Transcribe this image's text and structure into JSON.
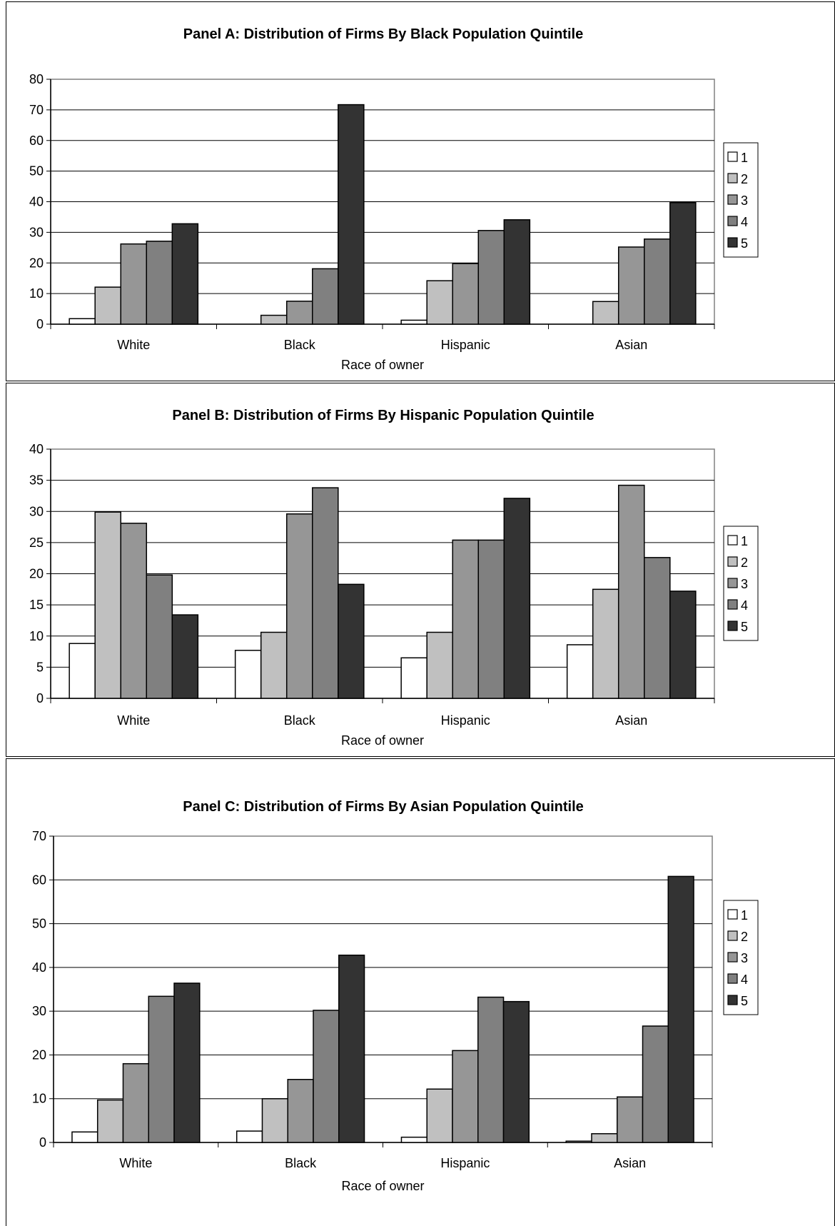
{
  "chart_data": [
    {
      "type": "bar",
      "title": "Panel A:  Distribution of Firms By Black Population Quintile",
      "xlabel": "Race of owner",
      "ylabel": "",
      "ylim": [
        0,
        80
      ],
      "yticks": [
        0,
        10,
        20,
        30,
        40,
        50,
        60,
        70,
        80
      ],
      "grid": true,
      "legend_position": "right",
      "categories": [
        "White",
        "Black",
        "Hispanic",
        "Asian"
      ],
      "series": [
        {
          "name": "1",
          "color": "#ffffff",
          "values": [
            1.8,
            0,
            1.3,
            0
          ]
        },
        {
          "name": "2",
          "color": "#c0c0c0",
          "values": [
            12.1,
            2.9,
            14.2,
            7.4
          ]
        },
        {
          "name": "3",
          "color": "#969696",
          "values": [
            26.2,
            7.5,
            19.8,
            25.2
          ]
        },
        {
          "name": "4",
          "color": "#808080",
          "values": [
            27.1,
            18.1,
            30.6,
            27.8
          ]
        },
        {
          "name": "5",
          "color": "#333333",
          "values": [
            32.8,
            71.7,
            34.1,
            39.7
          ]
        }
      ]
    },
    {
      "type": "bar",
      "title": "Panel B:  Distribution of Firms By Hispanic Population Quintile",
      "xlabel": "Race of owner",
      "ylabel": "",
      "ylim": [
        0,
        40
      ],
      "yticks": [
        0,
        5,
        10,
        15,
        20,
        25,
        30,
        35,
        40
      ],
      "grid": true,
      "legend_position": "right",
      "categories": [
        "White",
        "Black",
        "Hispanic",
        "Asian"
      ],
      "series": [
        {
          "name": "1",
          "color": "#ffffff",
          "values": [
            8.8,
            7.7,
            6.5,
            8.6
          ]
        },
        {
          "name": "2",
          "color": "#c0c0c0",
          "values": [
            29.9,
            10.6,
            10.6,
            17.5
          ]
        },
        {
          "name": "3",
          "color": "#969696",
          "values": [
            28.1,
            29.6,
            25.4,
            34.2
          ]
        },
        {
          "name": "4",
          "color": "#808080",
          "values": [
            19.8,
            33.8,
            25.4,
            22.6
          ]
        },
        {
          "name": "5",
          "color": "#333333",
          "values": [
            13.4,
            18.3,
            32.1,
            17.2
          ]
        }
      ]
    },
    {
      "type": "bar",
      "title": "Panel C:  Distribution of Firms By Asian Population Quintile",
      "xlabel": "Race of owner",
      "ylabel": "",
      "ylim": [
        0,
        70
      ],
      "yticks": [
        0,
        10,
        20,
        30,
        40,
        50,
        60,
        70
      ],
      "grid": true,
      "legend_position": "right",
      "categories": [
        "White",
        "Black",
        "Hispanic",
        "Asian"
      ],
      "series": [
        {
          "name": "1",
          "color": "#ffffff",
          "values": [
            2.4,
            2.6,
            1.2,
            0.3
          ]
        },
        {
          "name": "2",
          "color": "#c0c0c0",
          "values": [
            9.7,
            10.0,
            12.2,
            2.0
          ]
        },
        {
          "name": "3",
          "color": "#969696",
          "values": [
            18.0,
            14.4,
            21.0,
            10.4
          ]
        },
        {
          "name": "4",
          "color": "#808080",
          "values": [
            33.4,
            30.2,
            33.2,
            26.6
          ]
        },
        {
          "name": "5",
          "color": "#333333",
          "values": [
            36.4,
            42.8,
            32.2,
            60.8
          ]
        }
      ]
    }
  ]
}
